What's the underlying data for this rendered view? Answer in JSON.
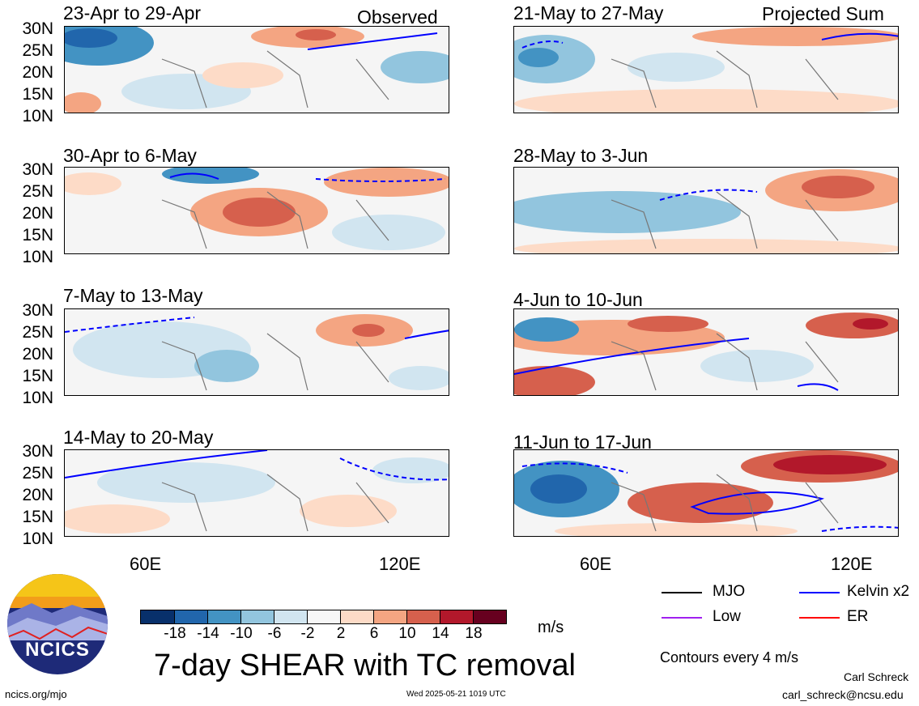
{
  "headers": {
    "left": "Observed",
    "right": "Projected Sum"
  },
  "panels": {
    "obs": [
      "23-Apr to 29-Apr",
      "30-Apr to 6-May",
      "7-May to 13-May",
      "14-May to 20-May"
    ],
    "proj": [
      "21-May to 27-May",
      "28-May to 3-Jun",
      "4-Jun to 10-Jun",
      "11-Jun to 17-Jun"
    ]
  },
  "lat_labels": [
    "30N",
    "25N",
    "20N",
    "15N",
    "10N"
  ],
  "lon_labels": [
    "60E",
    "120E"
  ],
  "colorbar": {
    "colors": [
      "#08306b",
      "#2166ac",
      "#4393c3",
      "#92c5de",
      "#d1e5f0",
      "#f7f7f7",
      "#fddbc7",
      "#f4a582",
      "#d6604d",
      "#b2182b",
      "#67001f"
    ],
    "labels": [
      "-18",
      "-14",
      "-10",
      "-6",
      "-2",
      "2",
      "6",
      "10",
      "14",
      "18"
    ],
    "units": "m/s"
  },
  "title": "7-day SHEAR with TC removal",
  "legend": [
    {
      "label": "MJO",
      "color": "#000000"
    },
    {
      "label": "Kelvin x2",
      "color": "#0000ff"
    },
    {
      "label": "Low",
      "color": "#a020f0"
    },
    {
      "label": "ER",
      "color": "#ff0000"
    }
  ],
  "contour_note": "Contours every 4 m/s",
  "logo_text": "NCICS",
  "footer": {
    "url": "ncics.org/mjo",
    "timestamp": "Wed 2025-05-21 1019 UTC",
    "author": "Carl Schreck",
    "email": "carl_schreck@ncsu.edu"
  }
}
